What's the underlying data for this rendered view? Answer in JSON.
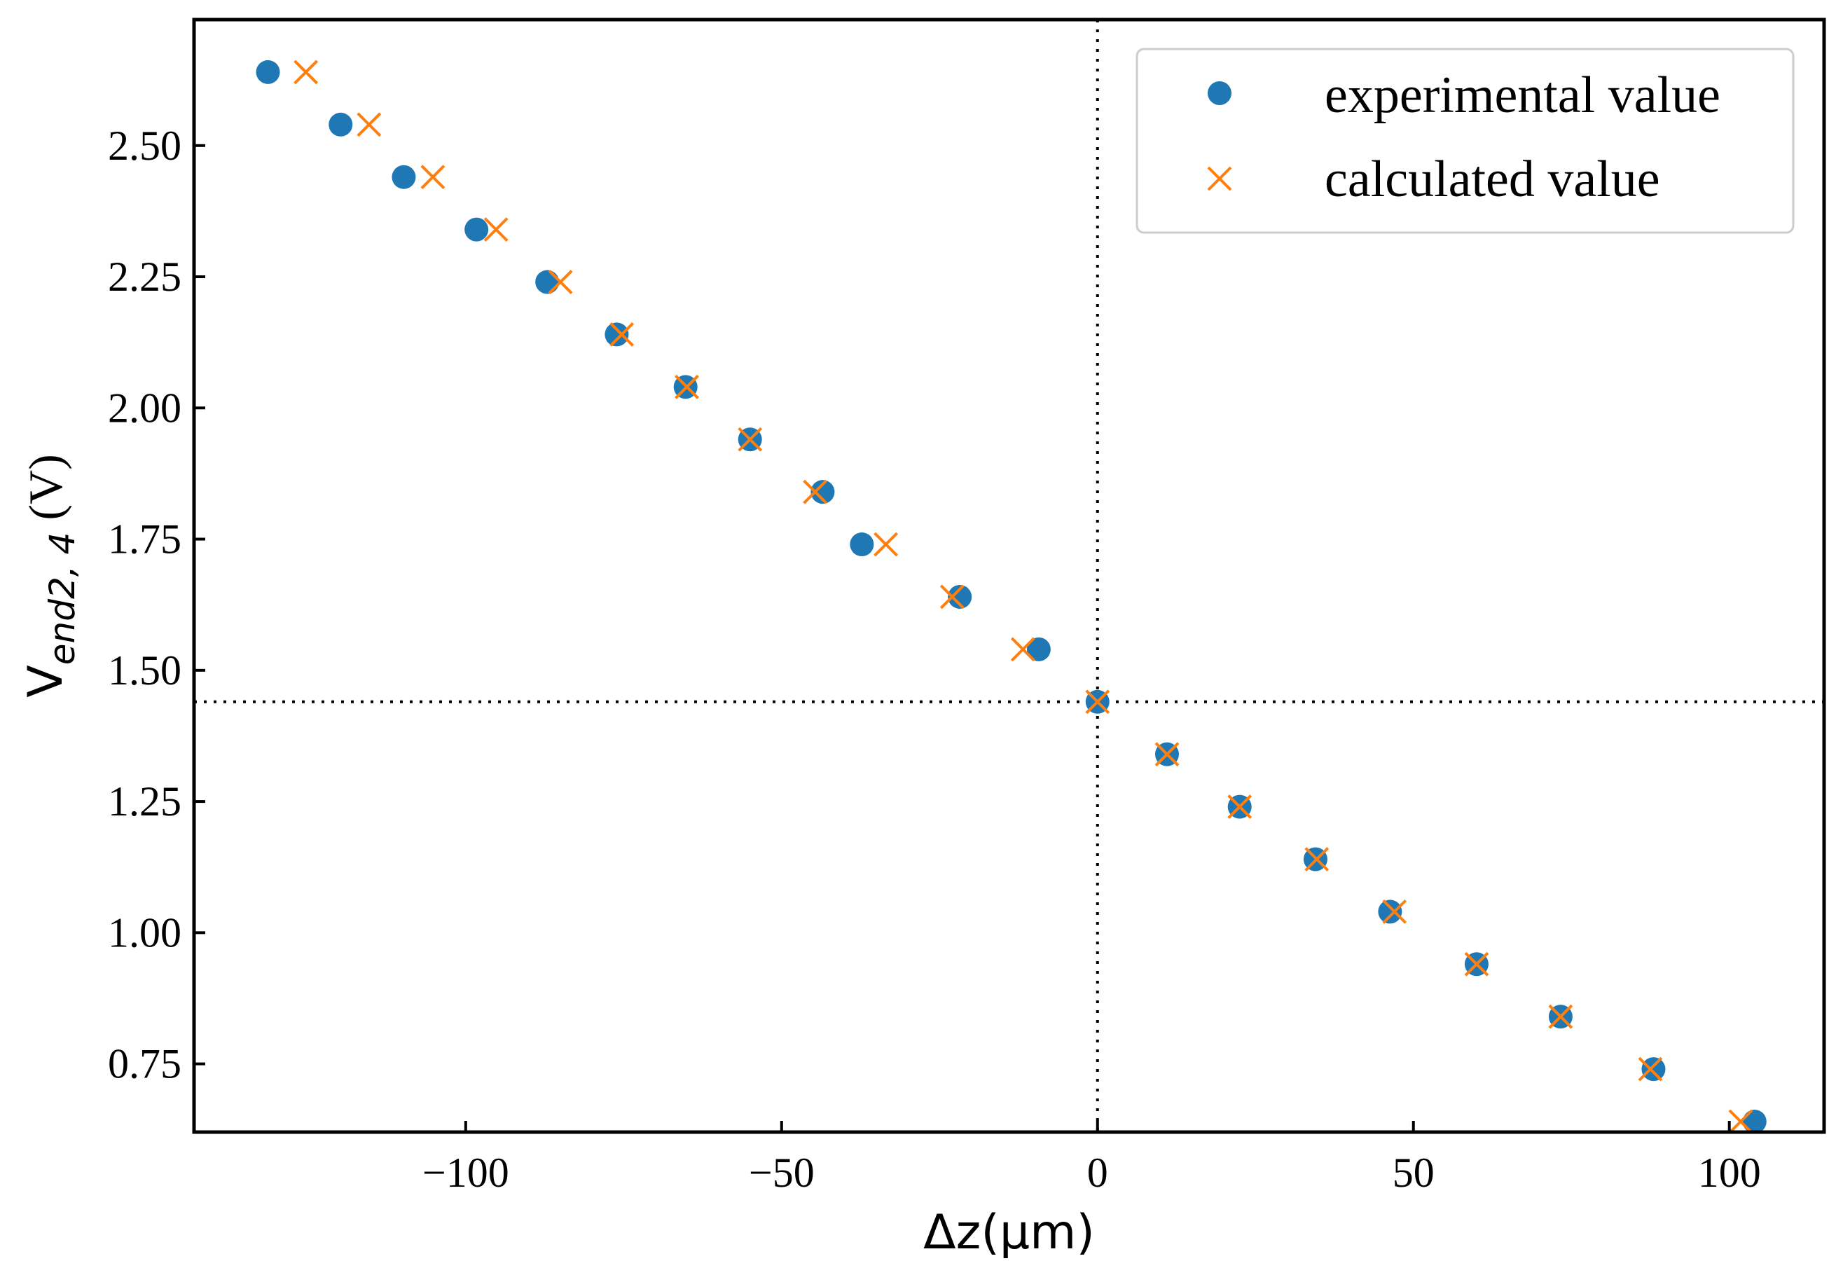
{
  "chart_data": {
    "type": "scatter",
    "xlabel": "Δz(μm)",
    "ylabel": "V_{end2,4} (V)",
    "ylabel_parts": {
      "base": "V",
      "subscript": "end2, 4",
      "unit": " (V)"
    },
    "xlim": [
      -143,
      115
    ],
    "ylim": [
      0.62,
      2.74
    ],
    "xticks": [
      -100,
      -50,
      0,
      50,
      100
    ],
    "xtick_labels": [
      "−100",
      "−50",
      "0",
      "50",
      "100"
    ],
    "yticks": [
      0.75,
      1.0,
      1.25,
      1.5,
      1.75,
      2.0,
      2.25,
      2.5
    ],
    "ytick_labels": [
      "0.75",
      "1.00",
      "1.25",
      "1.50",
      "1.75",
      "2.00",
      "2.25",
      "2.50"
    ],
    "grid": false,
    "legend_position": "top-right",
    "reference_lines": {
      "vertical_x": 0,
      "horizontal_y": 1.44,
      "style": "dotted"
    },
    "series": [
      {
        "name": "experimental value",
        "marker": "circle",
        "color": "#1f77b4",
        "x": [
          -131.3,
          -119.8,
          -109.8,
          -98.3,
          -87.1,
          -76.1,
          -65.2,
          -55.0,
          -43.5,
          -37.3,
          -21.8,
          -9.3,
          0.0,
          11.0,
          22.5,
          34.5,
          46.3,
          60.0,
          73.3,
          88.0,
          104.0
        ],
        "y": [
          2.64,
          2.54,
          2.44,
          2.34,
          2.24,
          2.14,
          2.04,
          1.94,
          1.84,
          1.74,
          1.64,
          1.54,
          1.44,
          1.34,
          1.24,
          1.14,
          1.04,
          0.94,
          0.84,
          0.74,
          0.64
        ]
      },
      {
        "name": "calculated value",
        "marker": "x",
        "color": "#ff7f0e",
        "x": [
          -125.3,
          -115.3,
          -105.2,
          -95.2,
          -85.0,
          -75.3,
          -65.0,
          -55.0,
          -44.7,
          -33.5,
          -23.0,
          -11.8,
          0.0,
          11.0,
          22.5,
          34.7,
          47.0,
          60.0,
          73.3,
          87.5,
          101.8
        ],
        "y": [
          2.64,
          2.54,
          2.44,
          2.34,
          2.24,
          2.14,
          2.04,
          1.94,
          1.84,
          1.74,
          1.64,
          1.54,
          1.44,
          1.34,
          1.24,
          1.14,
          1.04,
          0.94,
          0.84,
          0.74,
          0.64
        ]
      }
    ]
  }
}
